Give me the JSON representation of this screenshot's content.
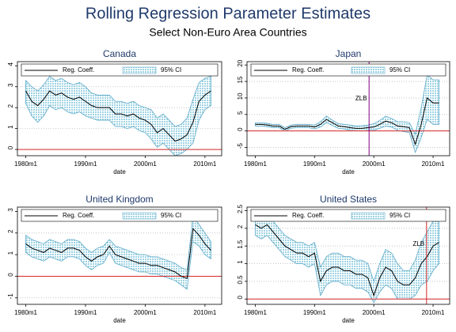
{
  "title": "Rolling Regression Parameter Estimates",
  "subtitle": "Select Non-Euro Area Countries",
  "chart_data": [
    {
      "type": "line",
      "title": "Canada",
      "x_label": "date",
      "x": [
        1980,
        1981,
        1982,
        1983,
        1984,
        1985,
        1986,
        1987,
        1988,
        1989,
        1990,
        1991,
        1992,
        1993,
        1994,
        1995,
        1996,
        1997,
        1998,
        1999,
        2000,
        2001,
        2002,
        2003,
        2004,
        2005,
        2006,
        2007,
        2008,
        2009,
        2010,
        2011
      ],
      "xlim": [
        1978.6,
        2012.8
      ],
      "xticks": [
        {
          "value": 1980,
          "label": "1980m1"
        },
        {
          "value": 1990,
          "label": "1990m1"
        },
        {
          "value": 2000,
          "label": "2000m1"
        },
        {
          "value": 2010,
          "label": "2010m1"
        }
      ],
      "ylim": [
        -0.3,
        4.2
      ],
      "yticks": [
        0,
        1,
        2,
        3,
        4
      ],
      "grid": true,
      "hline": {
        "value": 0,
        "color": "#d62728"
      },
      "series": [
        {
          "name": "Reg. Coeff.",
          "color": "#000000",
          "values": [
            2.8,
            2.3,
            2.1,
            2.4,
            2.8,
            2.6,
            2.7,
            2.5,
            2.4,
            2.5,
            2.3,
            2.1,
            2.0,
            2.0,
            2.0,
            1.7,
            1.7,
            1.6,
            1.7,
            1.5,
            1.4,
            1.2,
            0.8,
            1.0,
            0.7,
            0.4,
            0.5,
            0.7,
            1.3,
            2.3,
            2.6,
            2.8
          ]
        },
        {
          "name": "95% CI",
          "color": "#a6d8e6",
          "upper": [
            3.3,
            3.0,
            2.8,
            3.1,
            3.5,
            3.3,
            3.4,
            3.2,
            3.1,
            3.2,
            3.0,
            2.7,
            2.6,
            2.6,
            2.6,
            2.3,
            2.3,
            2.2,
            2.3,
            2.1,
            2.0,
            1.9,
            1.5,
            1.7,
            1.4,
            1.1,
            1.2,
            1.5,
            2.4,
            3.2,
            3.4,
            3.5
          ],
          "lower": [
            2.2,
            1.6,
            1.3,
            1.6,
            2.1,
            1.9,
            2.0,
            1.8,
            1.7,
            1.8,
            1.6,
            1.5,
            1.4,
            1.4,
            1.4,
            1.1,
            1.1,
            1.0,
            1.1,
            0.9,
            0.8,
            0.5,
            0.1,
            0.3,
            0.0,
            -0.3,
            -0.2,
            0.0,
            0.3,
            1.4,
            1.9,
            2.1
          ]
        }
      ]
    },
    {
      "type": "line",
      "title": "Japan",
      "x_label": "date",
      "x": [
        1980,
        1981,
        1982,
        1983,
        1984,
        1985,
        1986,
        1987,
        1988,
        1989,
        1990,
        1991,
        1992,
        1993,
        1994,
        1995,
        1996,
        1997,
        1998,
        1999,
        2000,
        2001,
        2002,
        2003,
        2004,
        2005,
        2006,
        2007,
        2008,
        2009,
        2010,
        2011
      ],
      "xlim": [
        1978.6,
        2012.8
      ],
      "xticks": [
        {
          "value": 1980,
          "label": "1980m1"
        },
        {
          "value": 1990,
          "label": "1990m1"
        },
        {
          "value": 2000,
          "label": "2000m1"
        },
        {
          "value": 2010,
          "label": "2010m1"
        }
      ],
      "ylim": [
        -7.5,
        21
      ],
      "yticks": [
        -5,
        0,
        5,
        10,
        15,
        20
      ],
      "grid": true,
      "hline": {
        "value": 0,
        "color": "#d62728"
      },
      "vline": {
        "value": 1999.2,
        "label": "ZLB",
        "color": "#800080"
      },
      "series": [
        {
          "name": "Reg. Coeff.",
          "color": "#000000",
          "values": [
            2.0,
            2.0,
            1.8,
            1.5,
            1.5,
            0.5,
            1.3,
            1.5,
            1.5,
            1.5,
            1.2,
            2.0,
            3.5,
            2.5,
            1.5,
            1.3,
            1.0,
            0.8,
            0.8,
            1.0,
            1.2,
            2.0,
            3.0,
            2.5,
            1.5,
            1.3,
            1.0,
            -4.0,
            2.0,
            10.0,
            8.5,
            8.5
          ]
        },
        {
          "name": "95% CI",
          "color": "#a6d8e6",
          "upper": [
            2.5,
            2.5,
            2.3,
            2.0,
            2.0,
            1.0,
            1.8,
            2.0,
            2.0,
            2.0,
            1.8,
            2.8,
            4.5,
            3.3,
            2.2,
            2.0,
            1.8,
            1.5,
            1.6,
            1.8,
            2.2,
            3.2,
            4.5,
            3.8,
            2.8,
            2.8,
            2.5,
            -1.0,
            7.0,
            17.0,
            15.5,
            15.5
          ],
          "lower": [
            1.5,
            1.5,
            1.3,
            1.0,
            1.0,
            0.0,
            0.8,
            1.0,
            1.0,
            1.0,
            0.6,
            1.2,
            2.5,
            1.7,
            0.8,
            0.6,
            0.2,
            0.1,
            0.0,
            0.2,
            0.2,
            0.8,
            1.5,
            1.2,
            0.2,
            -0.2,
            -0.5,
            -6.5,
            -2.0,
            3.5,
            2.0,
            2.0
          ]
        }
      ]
    },
    {
      "type": "line",
      "title": "United Kingdom",
      "x_label": "date",
      "x": [
        1980,
        1981,
        1982,
        1983,
        1984,
        1985,
        1986,
        1987,
        1988,
        1989,
        1990,
        1991,
        1992,
        1993,
        1994,
        1995,
        1996,
        1997,
        1998,
        1999,
        2000,
        2001,
        2002,
        2003,
        2004,
        2005,
        2006,
        2007,
        2008,
        2009,
        2010,
        2011
      ],
      "xlim": [
        1978.6,
        2012.8
      ],
      "xticks": [
        {
          "value": 1980,
          "label": "1980m1"
        },
        {
          "value": 1990,
          "label": "1990m1"
        },
        {
          "value": 2000,
          "label": "2000m1"
        },
        {
          "value": 2010,
          "label": "2010m1"
        }
      ],
      "ylim": [
        -1.3,
        3.2
      ],
      "yticks": [
        -1,
        0,
        1,
        2,
        3
      ],
      "grid": true,
      "hline": {
        "value": 0,
        "color": "#d62728"
      },
      "series": [
        {
          "name": "Reg. Coeff.",
          "color": "#000000",
          "values": [
            1.5,
            1.3,
            1.2,
            1.1,
            1.3,
            1.2,
            1.1,
            1.3,
            1.3,
            1.2,
            0.9,
            0.7,
            0.9,
            1.0,
            1.4,
            1.0,
            0.9,
            0.8,
            0.7,
            0.6,
            0.6,
            0.5,
            0.5,
            0.4,
            0.3,
            0.2,
            0.0,
            -0.1,
            2.2,
            1.9,
            1.5,
            1.2
          ]
        },
        {
          "name": "95% CI",
          "color": "#a6d8e6",
          "upper": [
            1.9,
            1.7,
            1.6,
            1.5,
            1.7,
            1.6,
            1.5,
            1.7,
            1.7,
            1.6,
            1.3,
            1.1,
            1.3,
            1.4,
            1.7,
            1.4,
            1.3,
            1.2,
            1.1,
            1.0,
            1.0,
            0.9,
            0.9,
            0.8,
            0.7,
            0.6,
            0.4,
            0.3,
            2.8,
            2.4,
            2.0,
            1.6
          ],
          "lower": [
            1.1,
            0.9,
            0.8,
            0.7,
            0.9,
            0.8,
            0.7,
            0.9,
            0.9,
            0.8,
            0.5,
            0.3,
            0.5,
            0.6,
            1.1,
            0.6,
            0.5,
            0.4,
            0.3,
            0.2,
            0.2,
            0.1,
            0.1,
            0.0,
            -0.1,
            -0.2,
            -0.4,
            -0.6,
            1.6,
            1.4,
            1.0,
            0.8
          ]
        }
      ]
    },
    {
      "type": "line",
      "title": "United States",
      "x_label": "date",
      "x": [
        1980,
        1981,
        1982,
        1983,
        1984,
        1985,
        1986,
        1987,
        1988,
        1989,
        1990,
        1991,
        1992,
        1993,
        1994,
        1995,
        1996,
        1997,
        1998,
        1999,
        2000,
        2001,
        2002,
        2003,
        2004,
        2005,
        2006,
        2007,
        2008,
        2009,
        2010,
        2011
      ],
      "xlim": [
        1978.6,
        2012.8
      ],
      "xticks": [
        {
          "value": 1980,
          "label": "1980m1"
        },
        {
          "value": 1990,
          "label": "1990m1"
        },
        {
          "value": 2000,
          "label": "2000m1"
        },
        {
          "value": 2010,
          "label": "2010m1"
        }
      ],
      "ylim": [
        -0.15,
        2.6
      ],
      "yticks": [
        0,
        0.5,
        1,
        1.5,
        2,
        2.5
      ],
      "grid": true,
      "hline": {
        "value": 0,
        "color": "#d62728"
      },
      "vline": {
        "value": 2008.9,
        "label": "ZLB",
        "color": "#d62728"
      },
      "series": [
        {
          "name": "Reg. Coeff.",
          "color": "#000000",
          "values": [
            2.1,
            2.0,
            2.1,
            1.9,
            1.7,
            1.5,
            1.4,
            1.3,
            1.3,
            1.2,
            1.3,
            0.5,
            0.8,
            0.9,
            0.9,
            0.8,
            0.8,
            0.7,
            0.7,
            0.6,
            0.1,
            0.6,
            0.9,
            0.8,
            0.5,
            0.4,
            0.4,
            0.6,
            1.0,
            1.2,
            1.5,
            1.6
          ]
        },
        {
          "name": "95% CI",
          "color": "#a6d8e6",
          "upper": [
            2.4,
            2.3,
            2.4,
            2.2,
            2.0,
            1.8,
            1.7,
            1.6,
            1.6,
            1.5,
            1.6,
            0.9,
            1.2,
            1.3,
            1.3,
            1.2,
            1.2,
            1.1,
            1.1,
            1.0,
            0.5,
            1.0,
            1.4,
            1.3,
            1.0,
            0.8,
            0.8,
            1.1,
            1.6,
            1.9,
            2.2,
            2.2
          ],
          "lower": [
            1.8,
            1.7,
            1.8,
            1.6,
            1.4,
            1.2,
            1.1,
            1.0,
            1.0,
            0.9,
            1.0,
            0.1,
            0.4,
            0.5,
            0.5,
            0.4,
            0.4,
            0.3,
            0.3,
            0.2,
            -0.1,
            0.2,
            0.4,
            0.3,
            0.0,
            0.0,
            0.0,
            0.1,
            0.4,
            0.5,
            0.8,
            1.0
          ]
        }
      ]
    }
  ]
}
